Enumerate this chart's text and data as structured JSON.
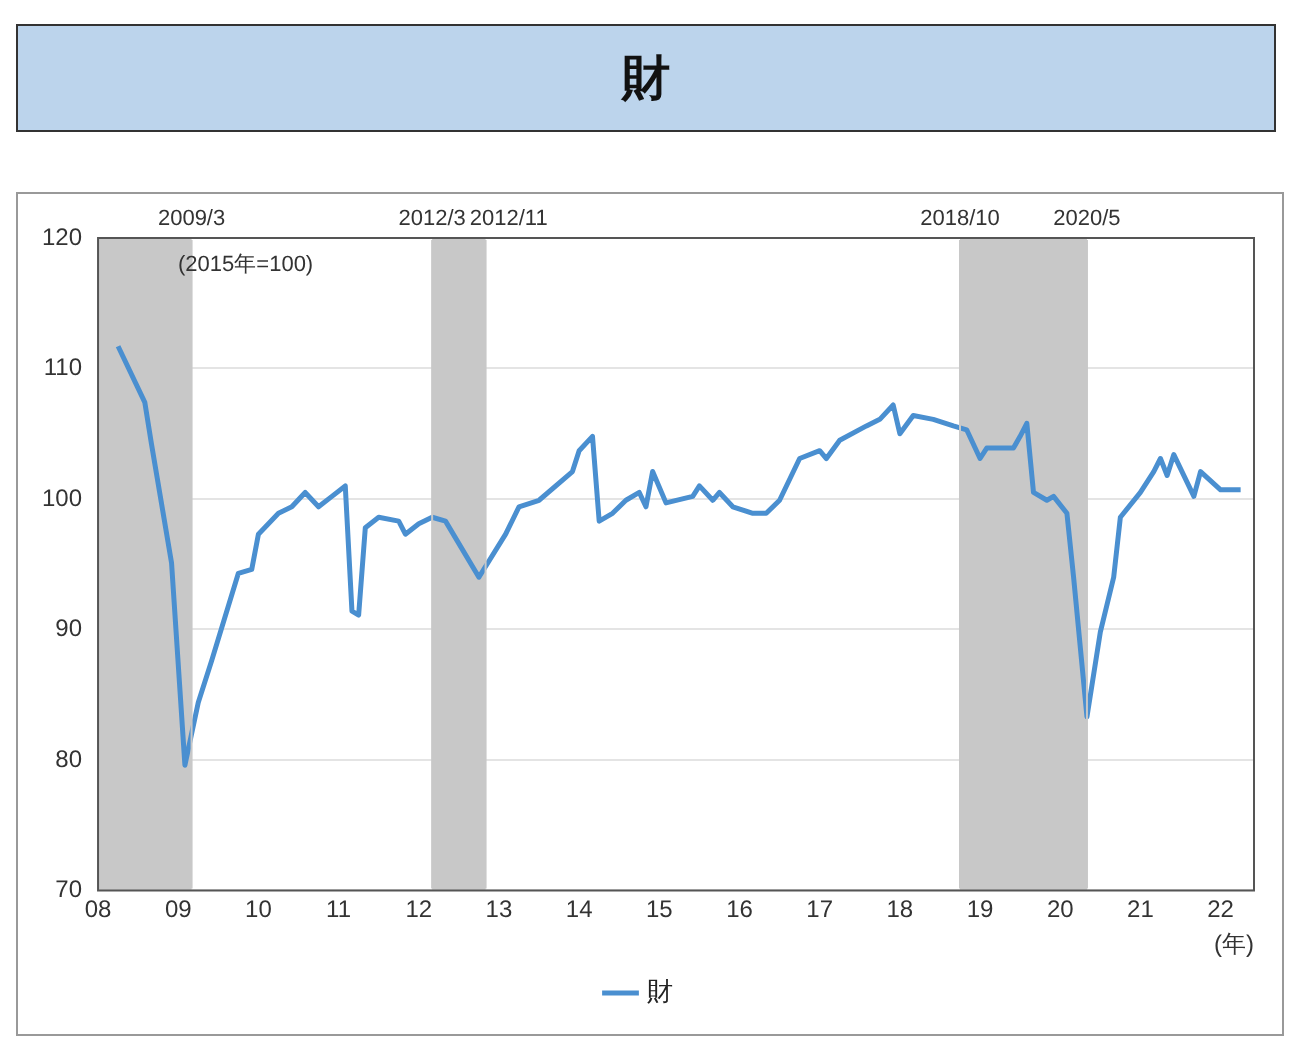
{
  "chart_data": {
    "type": "line",
    "title": "財",
    "xlabel": "(年)",
    "x": [
      "2008-04",
      "2008-08",
      "2008-09",
      "2008-12",
      "2009-02",
      "2009-04",
      "2009-06",
      "2009-10",
      "2009-12",
      "2010-01",
      "2010-04",
      "2010-06",
      "2010-08",
      "2010-10",
      "2010-12",
      "2011-02",
      "2011-03",
      "2011-04",
      "2011-05",
      "2011-07",
      "2011-10",
      "2011-11",
      "2012-01",
      "2012-03",
      "2012-05",
      "2012-10",
      "2013-02",
      "2013-04",
      "2013-07",
      "2013-12",
      "2014-01",
      "2014-03",
      "2014-04",
      "2014-06",
      "2014-08",
      "2014-10",
      "2014-11",
      "2014-12",
      "2015-02",
      "2015-06",
      "2015-07",
      "2015-09",
      "2015-10",
      "2015-12",
      "2016-03",
      "2016-05",
      "2016-07",
      "2016-10",
      "2017-01",
      "2017-02",
      "2017-04",
      "2017-08",
      "2017-10",
      "2017-12",
      "2018-01",
      "2018-03",
      "2018-06",
      "2018-09",
      "2018-11",
      "2019-01",
      "2019-02",
      "2019-06",
      "2019-07",
      "2019-08",
      "2019-09",
      "2019-11",
      "2019-12",
      "2020-02",
      "2020-03",
      "2020-05",
      "2020-07",
      "2020-09",
      "2020-10",
      "2021-01",
      "2021-03",
      "2021-04",
      "2021-05",
      "2021-06",
      "2021-09",
      "2021-10",
      "2022-01",
      "2022-04"
    ],
    "series": [
      {
        "name": "財",
        "color": "#4a8fd0",
        "values": [
          111.7,
          107.4,
          104.2,
          95.1,
          79.6,
          84.4,
          87.6,
          94.3,
          94.6,
          97.3,
          98.9,
          99.4,
          100.5,
          99.4,
          100.2,
          101.0,
          91.4,
          91.1,
          97.8,
          98.6,
          98.3,
          97.3,
          98.1,
          98.6,
          98.3,
          94.0,
          97.3,
          99.4,
          99.9,
          102.1,
          103.7,
          104.8,
          98.3,
          98.9,
          99.9,
          100.5,
          99.4,
          102.1,
          99.7,
          100.2,
          101.0,
          99.9,
          100.5,
          99.4,
          98.9,
          98.9,
          99.9,
          103.1,
          103.7,
          103.1,
          104.5,
          105.6,
          106.1,
          107.2,
          105.0,
          106.4,
          106.1,
          105.6,
          105.3,
          103.1,
          103.9,
          103.9,
          104.8,
          105.8,
          100.5,
          99.9,
          100.2,
          98.9,
          94.0,
          83.3,
          89.8,
          94.0,
          98.6,
          100.5,
          102.1,
          103.1,
          101.8,
          103.4,
          100.2,
          102.1,
          100.7,
          100.7
        ]
      }
    ],
    "xlim": [
      "2008",
      "2022-06"
    ],
    "xticks": [
      {
        "value": "2008",
        "label": "08"
      },
      {
        "value": "2009",
        "label": "09"
      },
      {
        "value": "2010",
        "label": "10"
      },
      {
        "value": "2011",
        "label": "11"
      },
      {
        "value": "2012",
        "label": "12"
      },
      {
        "value": "2013",
        "label": "13"
      },
      {
        "value": "2014",
        "label": "14"
      },
      {
        "value": "2015",
        "label": "15"
      },
      {
        "value": "2016",
        "label": "16"
      },
      {
        "value": "2017",
        "label": "17"
      },
      {
        "value": "2018",
        "label": "18"
      },
      {
        "value": "2019",
        "label": "19"
      },
      {
        "value": "2020",
        "label": "20"
      },
      {
        "value": "2021",
        "label": "21"
      },
      {
        "value": "2022",
        "label": "22"
      }
    ],
    "ylim": [
      70,
      120
    ],
    "yticks": [
      70,
      80,
      90,
      100,
      110,
      120
    ],
    "bands": [
      {
        "axis": "x",
        "from": "2008",
        "to": "2009-03",
        "color": "#c8c8c8"
      },
      {
        "axis": "x",
        "from": "2012-03",
        "to": "2012-11",
        "color": "#c8c8c8"
      },
      {
        "axis": "x",
        "from": "2018-10",
        "to": "2020-05",
        "color": "#c8c8c8"
      }
    ],
    "ref_lines": [
      {
        "axis": "x",
        "value": "2009-03",
        "label": "2009/3",
        "color": "#c8c8c8"
      },
      {
        "axis": "x",
        "value": "2012-03",
        "label": "2012/3",
        "color": "#c8c8c8"
      },
      {
        "axis": "x",
        "value": "2012-11",
        "label": "2012/11",
        "color": "#c8c8c8"
      },
      {
        "axis": "x",
        "value": "2018-10",
        "label": "2018/10",
        "color": "#c8c8c8"
      },
      {
        "axis": "x",
        "value": "2020-05",
        "label": "2020/5",
        "color": "#c8c8c8"
      }
    ],
    "annotations": [
      "(2015年=100)"
    ],
    "grid": "y",
    "legend": "bottom",
    "line_style": "solid"
  }
}
